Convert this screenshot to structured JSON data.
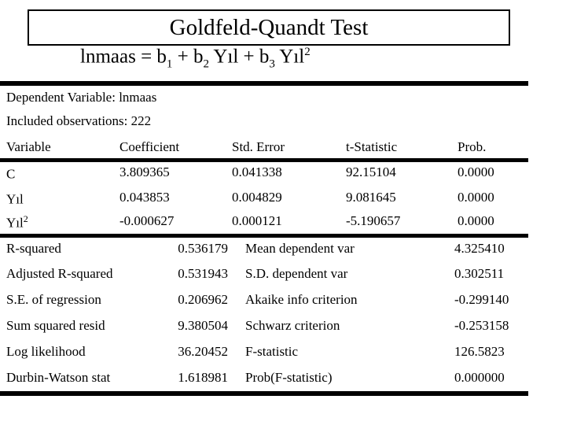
{
  "slide_title": "Goldfeld-Quandt Test",
  "equation": {
    "p1": "lnmaas = b",
    "s1": "1",
    "p2": " + b",
    "s2": "2",
    "p3": " Yıl + b",
    "s3": "3",
    "p4": " Yıl",
    "sup": "2"
  },
  "info": {
    "dependent_variable": "Dependent Variable: lnmaas",
    "observations": "Included observations: 222"
  },
  "coef_table": {
    "headers": [
      "Variable",
      "Coefficient",
      "Std. Error",
      "t-Statistic",
      "Prob."
    ],
    "rows": [
      {
        "variable": "C",
        "variable_sup": "",
        "coefficient": "3.809365",
        "std_error": "0.041338",
        "t_statistic": "92.15104",
        "prob": "0.0000"
      },
      {
        "variable": "Yıl",
        "variable_sup": "",
        "coefficient": "0.043853",
        "std_error": "0.004829",
        "t_statistic": "9.081645",
        "prob": "0.0000"
      },
      {
        "variable": "Yıl",
        "variable_sup": "2",
        "coefficient": "-0.000627",
        "std_error": "0.000121",
        "t_statistic": "-5.190657",
        "prob": "0.0000"
      }
    ]
  },
  "summary_table": {
    "rows": [
      {
        "label_left": "S.E. of regression",
        "value_left": "0.206962",
        "label_right": "Akaike info criterion",
        "value_right": "-0.299140"
      },
      {
        "label_left": "R-squared",
        "value_left": "0.536179",
        "label_right": "Mean dependent var",
        "value_right": "4.325410"
      },
      {
        "label_left": "Adjusted R-squared",
        "value_left": "0.531943",
        "label_right": "S.D. dependent var",
        "value_right": "0.302511"
      },
      {
        "label_left": "Sum squared resid",
        "value_left": "9.380504",
        "label_right": "Schwarz criterion",
        "value_right": "-0.253158"
      },
      {
        "label_left": "Log likelihood",
        "value_left": "36.20452",
        "label_right": "F-statistic",
        "value_right": "126.5823"
      },
      {
        "label_left": "Durbin-Watson stat",
        "value_left": "1.618981",
        "label_right": "Prob(F-statistic)",
        "value_right": "0.000000"
      }
    ],
    "order": [
      1,
      2,
      0,
      3,
      4,
      5
    ]
  },
  "colors": {
    "text": "#000000",
    "background": "#ffffff",
    "rule": "#000000"
  }
}
